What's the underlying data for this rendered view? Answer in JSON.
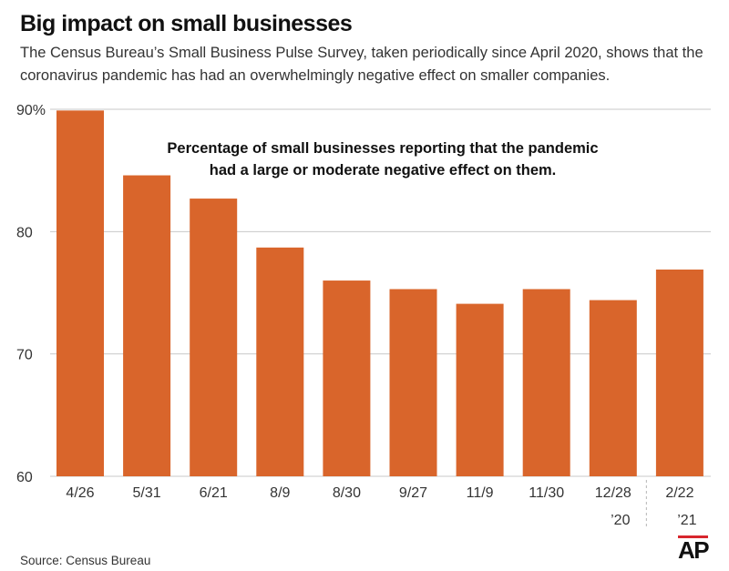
{
  "header": {
    "title": "Big impact on small businesses",
    "subtitle": "The Census Bureau’s Small Business Pulse Survey, taken periodically since April 2020, shows that the coronavirus pandemic has had an overwhelmingly negative effect on smaller companies."
  },
  "chart_data": {
    "type": "bar",
    "title": "Percentage of small businesses reporting that the pandemic had a large or moderate negative effect on them.",
    "annotation_lines": [
      "Percentage of small businesses reporting that the pandemic",
      "had a large or moderate negative effect on them."
    ],
    "categories": [
      "4/26",
      "5/31",
      "6/21",
      "8/9",
      "8/30",
      "9/27",
      "11/9",
      "11/30",
      "12/28",
      "2/22"
    ],
    "year_labels": [
      {
        "category": "12/28",
        "label": "’20"
      },
      {
        "category": "2/22",
        "label": "’21"
      }
    ],
    "values": [
      89.9,
      84.6,
      82.7,
      78.7,
      76.0,
      75.3,
      74.1,
      75.3,
      74.4,
      76.9
    ],
    "ylim": [
      60,
      90
    ],
    "yticks": [
      60,
      70,
      80,
      90
    ],
    "ytick_labels": [
      "60",
      "70",
      "80",
      "90%"
    ],
    "xlabel": "",
    "ylabel": "",
    "grid": true,
    "bar_color": "#d9652b",
    "grid_color": "#c8c8c8",
    "year_divider_after": "12/28"
  },
  "footer": {
    "source": "Source: Census Bureau",
    "logo_text": "AP"
  }
}
